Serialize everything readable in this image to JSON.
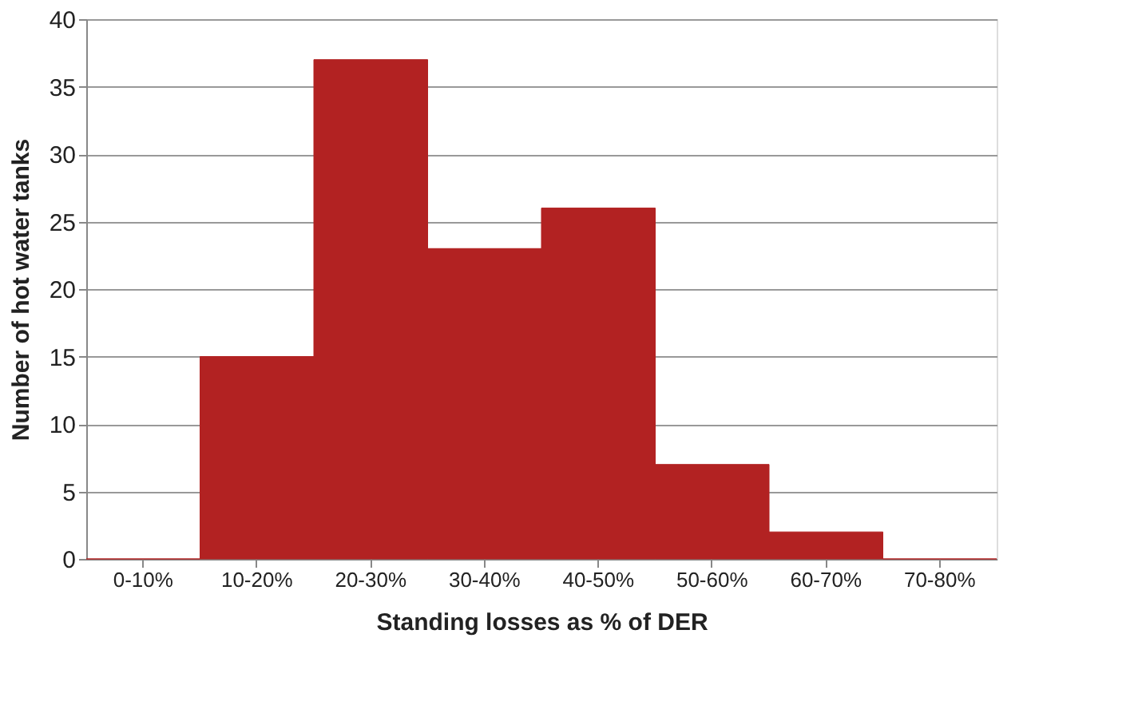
{
  "chart_data": {
    "type": "bar",
    "xlabel": "Standing losses as % of DER",
    "ylabel": "Number of hot water tanks",
    "categories": [
      "0-10%",
      "10-20%",
      "20-30%",
      "30-40%",
      "40-50%",
      "50-60%",
      "60-70%",
      "70-80%"
    ],
    "values": [
      0,
      15,
      37,
      23,
      26,
      7,
      2,
      0
    ],
    "color": "#b22222",
    "ylim": [
      0,
      40
    ],
    "yticks": [
      0,
      5,
      10,
      15,
      20,
      25,
      30,
      35,
      40
    ],
    "grid": "y"
  }
}
